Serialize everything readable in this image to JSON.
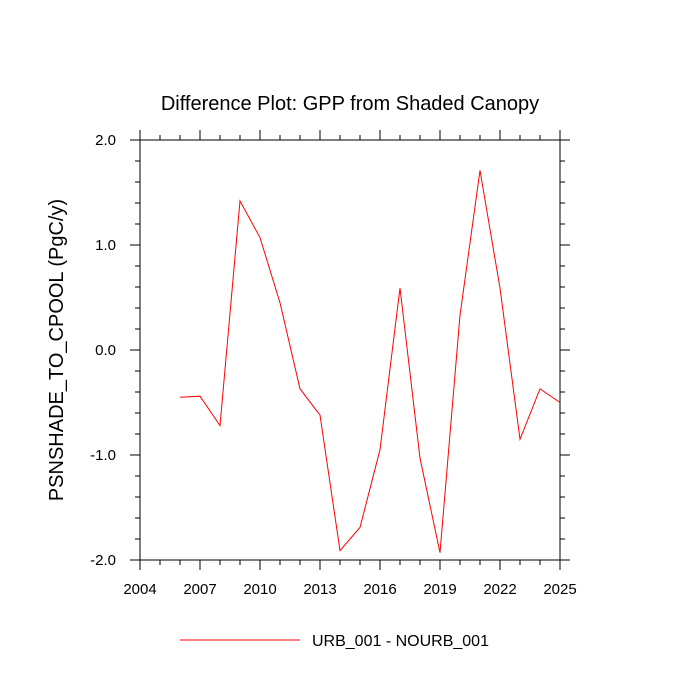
{
  "chart_data": {
    "type": "line",
    "title": "Difference Plot: GPP from Shaded Canopy",
    "xlabel": "",
    "ylabel": "PSNSHADE_TO_CPOOL  (PgC/y)",
    "xlim": [
      2004,
      2025
    ],
    "ylim": [
      -2.0,
      2.0
    ],
    "x_ticks": [
      2004,
      2007,
      2010,
      2013,
      2016,
      2019,
      2022,
      2025
    ],
    "y_ticks": [
      -2.0,
      -1.0,
      0.0,
      1.0,
      2.0
    ],
    "y_tick_labels": [
      "-2.0",
      "-1.0",
      "0.0",
      "1.0",
      "2.0"
    ],
    "grid": false,
    "legend_position": "bottom-center",
    "series": [
      {
        "name": "URB_001 - NOURB_001",
        "color": "#ff0000",
        "x": [
          2006,
          2007,
          2008,
          2009,
          2010,
          2011,
          2012,
          2013,
          2014,
          2015,
          2016,
          2017,
          2018,
          2019,
          2020,
          2021,
          2022,
          2023,
          2024,
          2025
        ],
        "values": [
          -0.45,
          -0.44,
          -0.72,
          1.42,
          1.07,
          0.45,
          -0.37,
          -0.62,
          -1.91,
          -1.69,
          -0.95,
          0.59,
          -1.03,
          -1.93,
          0.33,
          1.71,
          0.59,
          -0.85,
          -0.37,
          -0.5
        ]
      }
    ]
  }
}
